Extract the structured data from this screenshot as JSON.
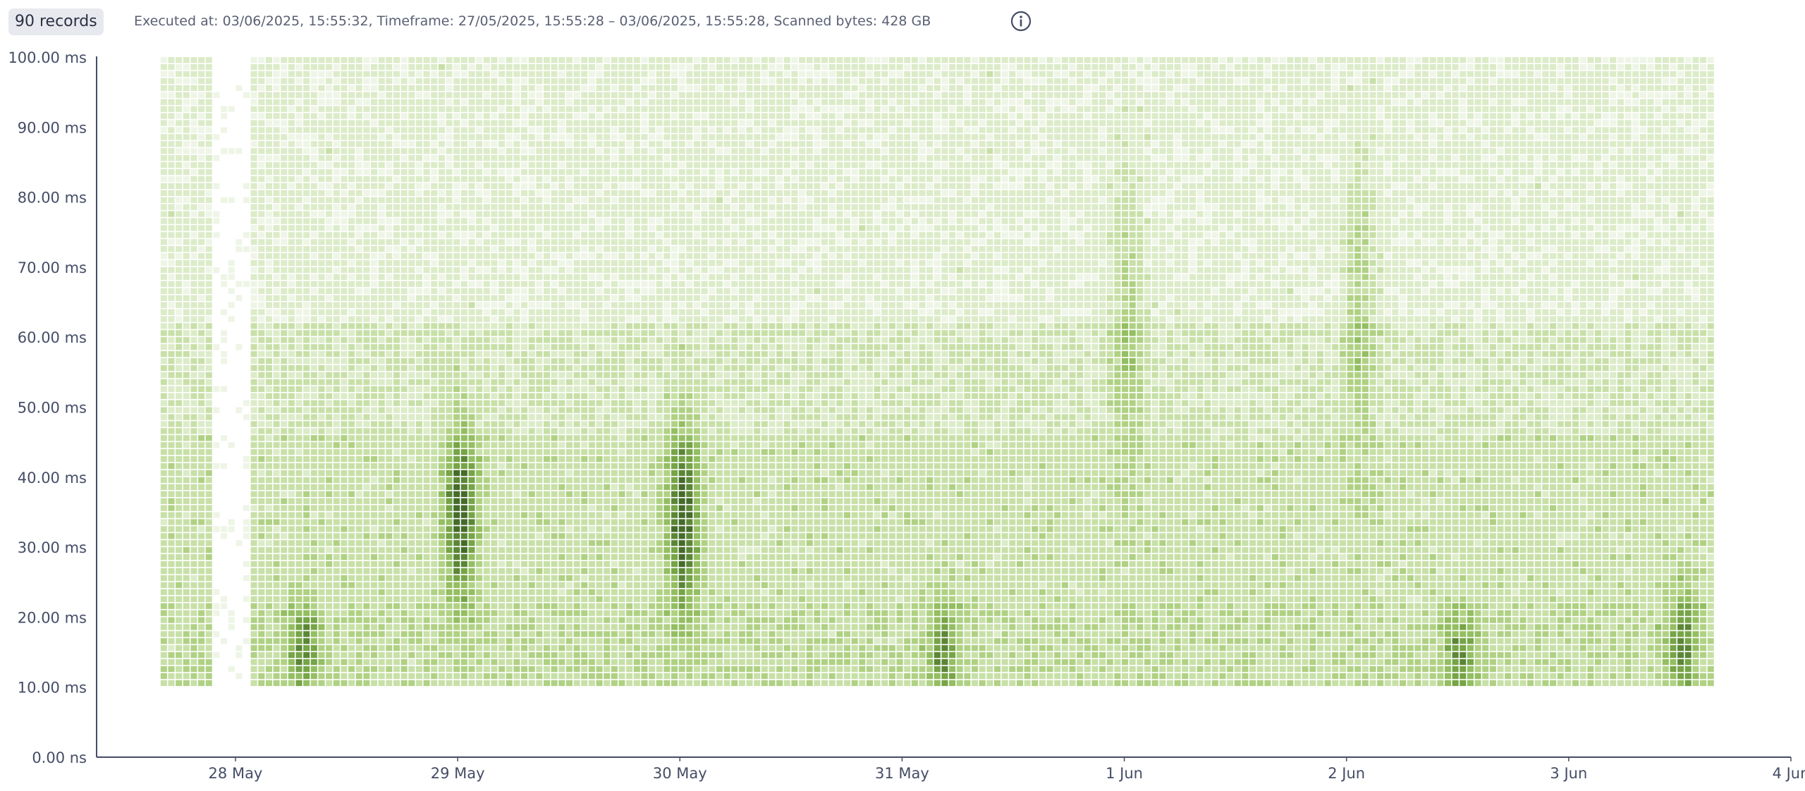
{
  "header": {
    "records_badge": "90 records",
    "execution_info": "Executed at: 03/06/2025, 15:55:32, Timeframe: 27/05/2025, 15:55:28 – 03/06/2025, 15:55:28, Scanned bytes: 428 GB",
    "info_icon": "info-circle-icon"
  },
  "chart_data": {
    "type": "heatmap",
    "title": "",
    "xlabel": "",
    "ylabel": "",
    "x_range": [
      "27/05/2025, 09:00",
      "04/06/2025, 00:00"
    ],
    "data_x_range": [
      "27/05/2025, 15:55",
      "03/06/2025, 15:55"
    ],
    "y_range_ms": [
      0,
      100
    ],
    "data_y_range_ms": [
      10,
      100
    ],
    "bin_height_ms": 1,
    "x_ticks": [
      "28 May",
      "29 May",
      "30 May",
      "31 May",
      "1 Jun",
      "2 Jun",
      "3 Jun",
      "4 Jun"
    ],
    "y_ticks": [
      "0.00 ns",
      "10.00 ms",
      "20.00 ms",
      "30.00 ms",
      "40.00 ms",
      "50.00 ms",
      "60.00 ms",
      "70.00 ms",
      "80.00 ms",
      "90.00 ms",
      "100.00 ms"
    ],
    "color_scale": [
      "#eef5e6",
      "#dcebc8",
      "#c8e0a8",
      "#b0d184",
      "#94be62",
      "#76a447",
      "#5b8637",
      "#456b2a"
    ],
    "grid": false,
    "legend": "none",
    "density_hotspots": [
      {
        "time": "28/05/2025, 07:00",
        "ms_range": [
          10,
          20
        ],
        "level": "high"
      },
      {
        "time": "29/05/2025, 00:00",
        "ms_range": [
          24,
          45
        ],
        "level": "very high"
      },
      {
        "time": "30/05/2025, 00:00",
        "ms_range": [
          22,
          45
        ],
        "level": "very high"
      },
      {
        "time": "31/05/2025, 04:00",
        "ms_range": [
          10,
          20
        ],
        "level": "high"
      },
      {
        "time": "01/06/2025, 00:00",
        "ms_range": [
          45,
          82
        ],
        "level": "medium"
      },
      {
        "time": "02/06/2025, 01:00",
        "ms_range": [
          45,
          84
        ],
        "level": "medium"
      },
      {
        "time": "02/06/2025, 12:00",
        "ms_range": [
          10,
          18
        ],
        "level": "high"
      },
      {
        "time": "03/06/2025, 12:00",
        "ms_range": [
          10,
          22
        ],
        "level": "high"
      }
    ],
    "sparse_gap": {
      "time_range": [
        "27/05/2025, 21:00",
        "28/05/2025, 01:00"
      ]
    }
  }
}
